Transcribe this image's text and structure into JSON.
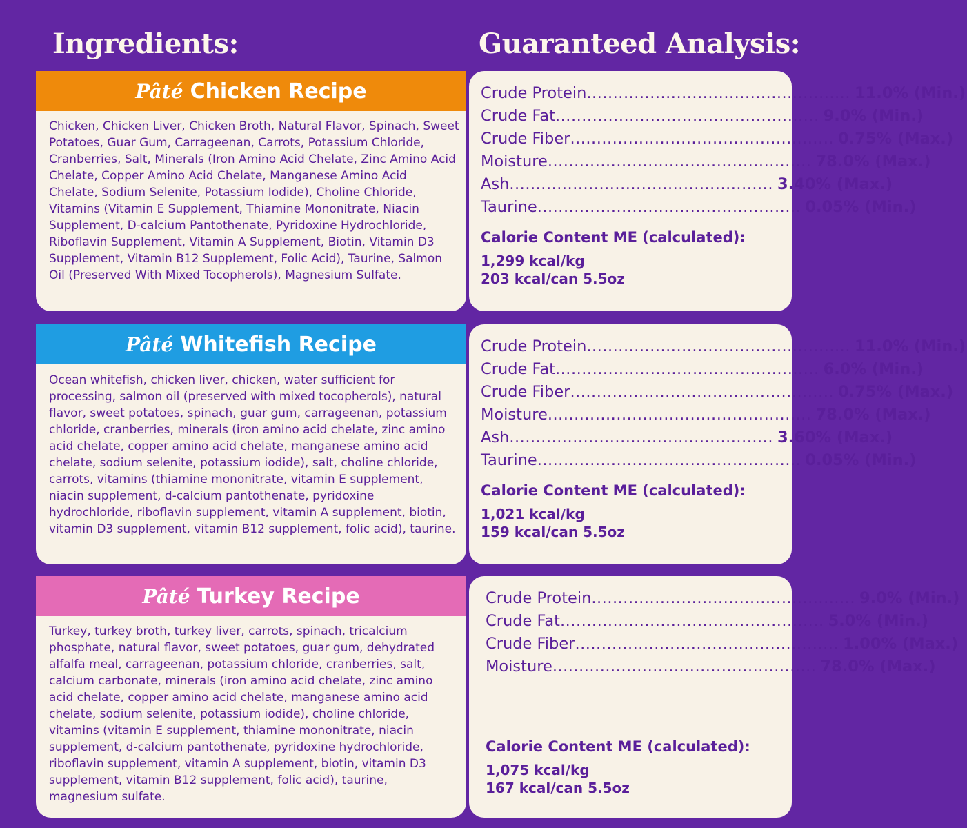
{
  "headings": {
    "ingredients": "Ingredients:",
    "analysis": "Guaranteed Analysis:"
  },
  "colors": {
    "background": "#6226a3",
    "chicken": "#ef8a0b",
    "whitefish": "#1f9de2",
    "turkey": "#e46bb6",
    "text": "#5a1f9a",
    "card": "#f8f2e7"
  },
  "recipes": [
    {
      "pate": "Pâté",
      "name": "Chicken Recipe",
      "ingredients": "Chicken, Chicken Liver, Chicken Broth, Natural Flavor, Spinach, Sweet Potatoes, Guar Gum, Carrageenan, Carrots, Potassium Chloride, Cranberries, Salt, Minerals (Iron Amino Acid Chelate, Zinc Amino Acid Chelate, Copper Amino Acid Chelate, Manganese Amino Acid Chelate, Sodium Selenite, Potassium Iodide), Choline Chloride, Vitamins (Vitamin E Supplement, Thiamine Mononitrate, Niacin Supplement, D-calcium Pantothenate, Pyridoxine Hydrochloride, Riboflavin Supplement, Vitamin A Supplement, Biotin, Vitamin D3 Supplement, Vitamin B12 Supplement, Folic Acid), Taurine, Salmon Oil (Preserved With Mixed Tocopherols), Magnesium Sulfate.",
      "analysis": [
        {
          "name": "Crude Protein",
          "value": "11.0% (Min.)"
        },
        {
          "name": "Crude Fat",
          "value": "9.0% (Min.)"
        },
        {
          "name": "Crude Fiber",
          "value": "0.75% (Max.)"
        },
        {
          "name": "Moisture",
          "value": "78.0% (Max.)"
        },
        {
          "name": "Ash",
          "value": "3.40% (Max.)"
        },
        {
          "name": "Taurine",
          "value": "0.05% (Min.)"
        }
      ],
      "calorie_title": "Calorie Content ME (calculated):",
      "kcal_kg": "1,299 kcal/kg",
      "kcal_can": "203 kcal/can 5.5oz"
    },
    {
      "pate": "Pâté",
      "name": "Whitefish Recipe",
      "ingredients": "Ocean whitefish, chicken liver, chicken, water sufficient for processing, salmon oil (preserved with mixed tocopherols), natural flavor, sweet potatoes, spinach, guar gum, carrageenan, potassium chloride, cranberries, minerals (iron amino acid chelate, zinc amino acid chelate, copper amino acid chelate, manganese amino acid chelate, sodium selenite, potassium iodide), salt, choline chloride, carrots, vitamins (thiamine mononitrate, vitamin E supplement, niacin supplement, d-calcium pantothenate, pyridoxine hydrochloride, riboflavin supplement, vitamin A supplement, biotin, vitamin D3 supplement, vitamin B12 supplement, folic acid), taurine.",
      "analysis": [
        {
          "name": "Crude Protein",
          "value": "11.0% (Min.)"
        },
        {
          "name": "Crude Fat",
          "value": "6.0% (Min.)"
        },
        {
          "name": "Crude Fiber",
          "value": "0.75% (Max.)"
        },
        {
          "name": "Moisture",
          "value": "78.0% (Max.)"
        },
        {
          "name": "Ash",
          "value": "3.60% (Max.)"
        },
        {
          "name": "Taurine",
          "value": "0.05% (Min.)"
        }
      ],
      "calorie_title": "Calorie Content ME (calculated):",
      "kcal_kg": "1,021 kcal/kg",
      "kcal_can": "159 kcal/can 5.5oz"
    },
    {
      "pate": "Pâté",
      "name": "Turkey Recipe",
      "ingredients": "Turkey, turkey broth, turkey liver, carrots, spinach, tricalcium phosphate, natural flavor, sweet potatoes, guar gum, dehydrated alfalfa meal, carrageenan, potassium chloride, cranberries, salt, calcium carbonate, minerals (iron amino acid chelate, zinc amino acid chelate, copper amino acid chelate, manganese amino acid chelate, sodium selenite, potassium iodide), choline chloride, vitamins (vitamin E supplement, thiamine mononitrate, niacin supplement, d-calcium pantothenate, pyridoxine hydrochloride, riboflavin supplement, vitamin A supplement, biotin, vitamin D3 supplement, vitamin B12 supplement, folic acid), taurine, magnesium sulfate.",
      "analysis": [
        {
          "name": "Crude Protein",
          "value": "9.0% (Min.)"
        },
        {
          "name": "Crude Fat",
          "value": "5.0% (Min.)"
        },
        {
          "name": "Crude Fiber",
          "value": "1.00% (Max.)"
        },
        {
          "name": "Moisture",
          "value": "78.0% (Max.)"
        }
      ],
      "calorie_title": "Calorie Content ME (calculated):",
      "kcal_kg": "1,075 kcal/kg",
      "kcal_can": "167 kcal/can 5.5oz"
    }
  ]
}
